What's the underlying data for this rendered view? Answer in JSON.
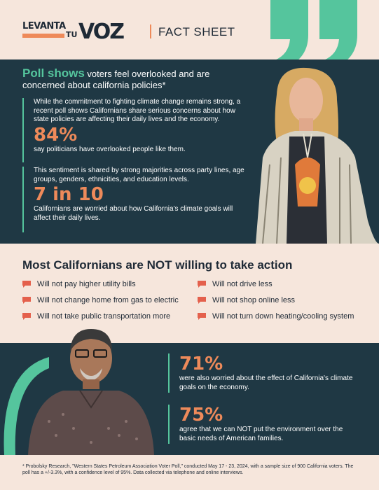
{
  "logo": {
    "line1": "LEVANTA",
    "line2": "TU",
    "line3": "VOZ"
  },
  "header": {
    "label": "FACT SHEET"
  },
  "section1": {
    "headline_big": "Poll shows",
    "headline_rest": " voters feel overlooked and are concerned about california policies*",
    "block1": {
      "text": "While the commitment to fighting climate change remains strong, a recent poll shows Californians share serious concerns about how state policies are affecting their daily lives and the economy.",
      "stat": "84%",
      "stat_text": "say politicians have overlooked people like them."
    },
    "block2": {
      "text": "This sentiment is shared by strong majorities across party lines, age groups, genders, ethnicities, and education levels.",
      "stat": "7 in 10",
      "stat_text": "Californians are worried about how California's climate goals will affect their daily lives."
    }
  },
  "section2": {
    "heading": "Most Californians are NOT willing to take action",
    "left_items": [
      "Will not pay higher utility bills",
      "Will not change home from gas to electric",
      "Will not take public transportation more"
    ],
    "right_items": [
      "Will not drive less",
      "Will not shop online less",
      "Will not turn down heating/cooling system"
    ]
  },
  "section3": {
    "stat1": "71%",
    "stat1_text": "were also worried about the effect of California's climate goals on the economy.",
    "stat2": "75%",
    "stat2_text": "agree that we can NOT put the environment over the basic needs of American families."
  },
  "footnote": "* Probolsky Research, \"Western States Petroleum Association Voter Poll,\" conducted May 17 - 23, 2024, with a sample size of 900 California voters. The poll has a +/-3.3%, with a confidence level of 95%. Data collected via telephone and online interviews.",
  "colors": {
    "navy": "#1f3844",
    "green": "#55c59d",
    "orange": "#ee8a5a",
    "cream": "#f6e6dc",
    "bullet": "#e4604c"
  },
  "icons": [
    "speech-bubble-icon",
    "quote-mark-icon"
  ]
}
